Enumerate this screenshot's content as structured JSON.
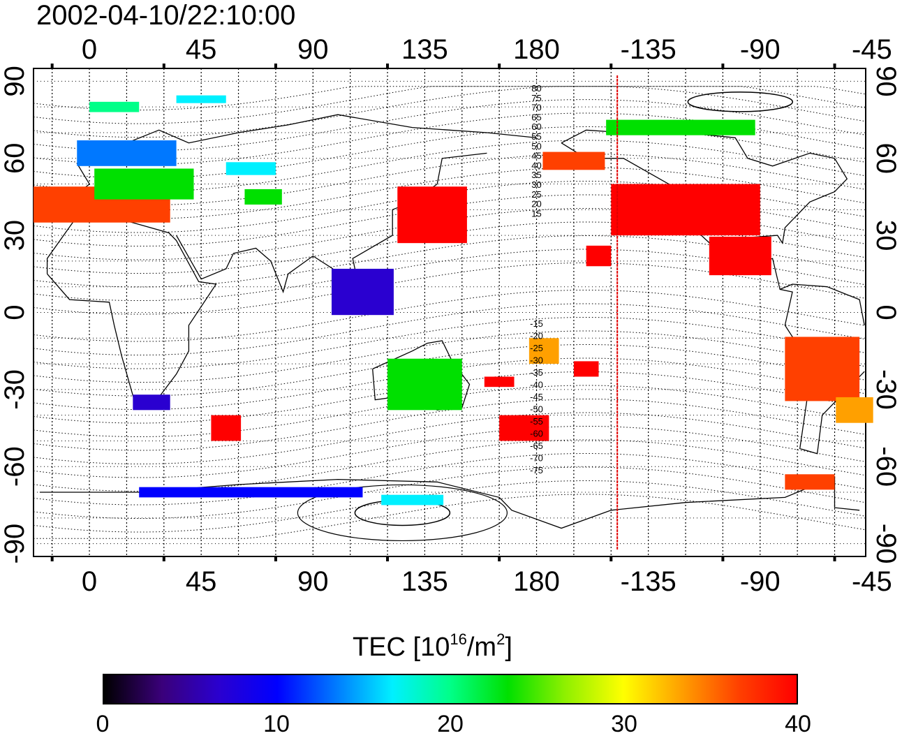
{
  "title": "2002-04-10/22:10:00",
  "map": {
    "lon_min": -22.5,
    "lon_max": 312.5,
    "lat_min": -95,
    "lat_max": 95,
    "top_lon_ticks": [
      "0",
      "45",
      "90",
      "135",
      "180",
      "-135",
      "-90",
      "-45"
    ],
    "bottom_lon_ticks": [
      "0",
      "45",
      "90",
      "135",
      "180",
      "-135",
      "-90",
      "-45"
    ],
    "left_lat_ticks": [
      "90",
      "60",
      "30",
      "0",
      "-30",
      "-60",
      "-90"
    ],
    "right_lat_ticks": [
      "90",
      "60",
      "30",
      "0",
      "-30",
      "-60",
      "-90"
    ],
    "terminator_lon": -147.5,
    "terminator_color": "#e00000",
    "contour_labels_north": [
      "80",
      "75",
      "70",
      "65",
      "60",
      "55",
      "50",
      "45",
      "40",
      "35",
      "30",
      "25",
      "20",
      "15"
    ],
    "contour_labels_south": [
      "-15",
      "-20",
      "-25",
      "-30",
      "-35",
      "-40",
      "-45",
      "-50",
      "-55",
      "-60",
      "-65",
      "-70",
      "-75"
    ],
    "tec_patches": [
      {
        "lon": 5,
        "lat": 42,
        "w": 55,
        "h": 14,
        "tec": 38
      },
      {
        "lon": 22,
        "lat": 50,
        "w": 40,
        "h": 12,
        "tec": 24
      },
      {
        "lon": 15,
        "lat": 62,
        "w": 40,
        "h": 10,
        "tec": 13
      },
      {
        "lon": 10,
        "lat": 80,
        "w": 20,
        "h": 4,
        "tec": 19
      },
      {
        "lon": 45,
        "lat": 83,
        "w": 20,
        "h": 3,
        "tec": 15
      },
      {
        "lon": 70,
        "lat": 45,
        "w": 15,
        "h": 6,
        "tec": 22
      },
      {
        "lon": 65,
        "lat": 56,
        "w": 20,
        "h": 5,
        "tec": 18
      },
      {
        "lon": 138,
        "lat": 38,
        "w": 28,
        "h": 22,
        "tec": 39
      },
      {
        "lon": 195,
        "lat": 59,
        "w": 25,
        "h": 7,
        "tec": 36
      },
      {
        "lon": 240,
        "lat": 40,
        "w": 60,
        "h": 20,
        "tec": 39
      },
      {
        "lon": 262,
        "lat": 22,
        "w": 25,
        "h": 15,
        "tec": 39
      },
      {
        "lon": 238,
        "lat": 72,
        "w": 60,
        "h": 6,
        "tec": 22
      },
      {
        "lon": 205,
        "lat": 22,
        "w": 10,
        "h": 8,
        "tec": 39
      },
      {
        "lon": 200,
        "lat": -22,
        "w": 10,
        "h": 6,
        "tec": 39
      },
      {
        "lon": 175,
        "lat": -45,
        "w": 20,
        "h": 10,
        "tec": 39
      },
      {
        "lon": 165,
        "lat": -27,
        "w": 12,
        "h": 4,
        "tec": 39
      },
      {
        "lon": 183,
        "lat": -15,
        "w": 12,
        "h": 10,
        "tec": 33
      },
      {
        "lon": 135,
        "lat": -28,
        "w": 30,
        "h": 20,
        "tec": 24
      },
      {
        "lon": 295,
        "lat": -22,
        "w": 30,
        "h": 25,
        "tec": 38
      },
      {
        "lon": 308,
        "lat": -38,
        "w": 15,
        "h": 10,
        "tec": 33
      },
      {
        "lon": 290,
        "lat": -66,
        "w": 20,
        "h": 6,
        "tec": 38
      },
      {
        "lon": 25,
        "lat": -35,
        "w": 15,
        "h": 6,
        "tec": 7
      },
      {
        "lon": 65,
        "lat": -70,
        "w": 90,
        "h": 4,
        "tec": 9
      },
      {
        "lon": 130,
        "lat": -73,
        "w": 25,
        "h": 4,
        "tec": 15
      },
      {
        "lon": 55,
        "lat": -45,
        "w": 12,
        "h": 10,
        "tec": 39
      },
      {
        "lon": 110,
        "lat": 8,
        "w": 25,
        "h": 18,
        "tec": 6
      }
    ]
  },
  "colorbar": {
    "title_prefix": "TEC  [10",
    "title_exp1": "16",
    "title_mid": "/m",
    "title_exp2": "2",
    "title_suffix": "]",
    "min": 0,
    "max": 40,
    "ticks": [
      "0",
      "10",
      "20",
      "30",
      "40"
    ],
    "colors": [
      "#000000",
      "#3a007a",
      "#2a00d0",
      "#0000ff",
      "#0078ff",
      "#00f0ff",
      "#00ff88",
      "#00e000",
      "#90f000",
      "#ffff00",
      "#ffa000",
      "#ff4000",
      "#ff0000"
    ]
  }
}
